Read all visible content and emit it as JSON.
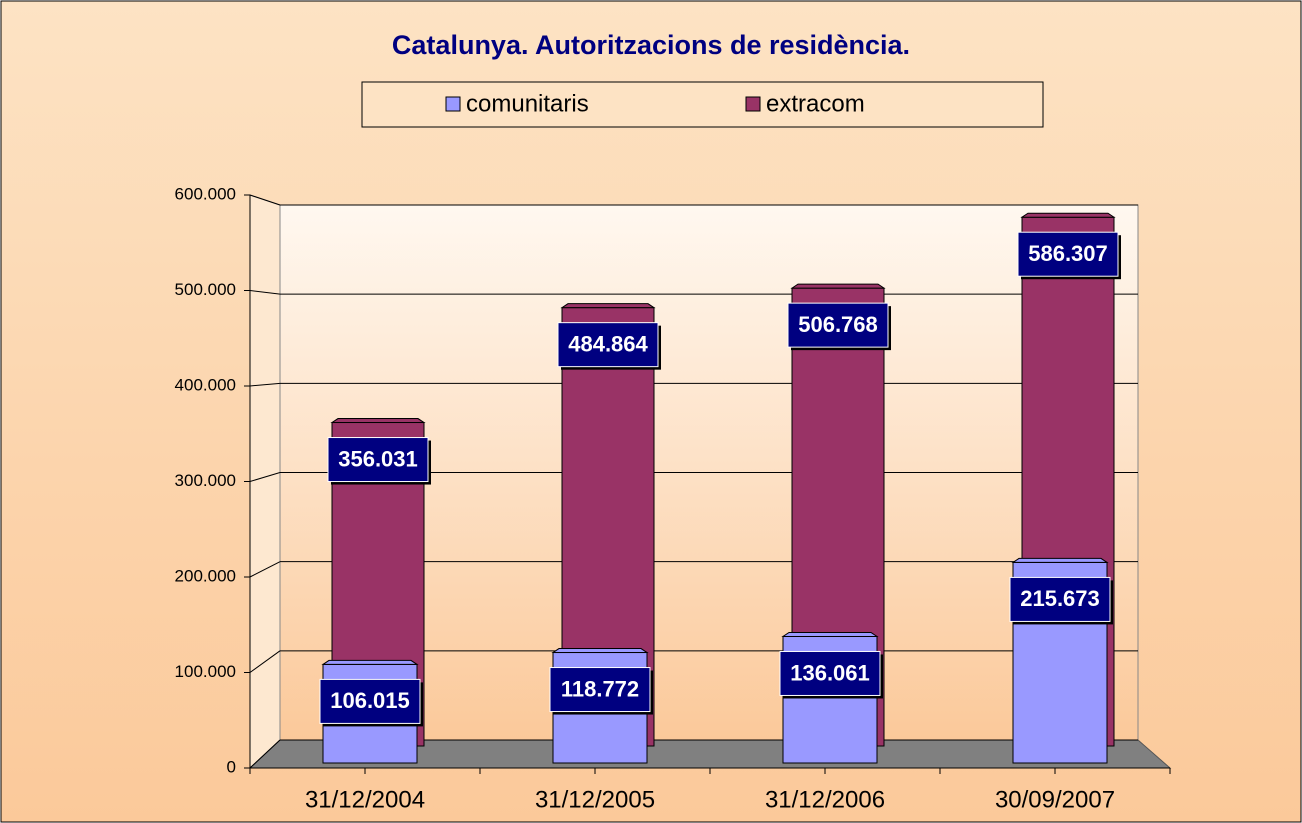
{
  "chart_data": {
    "type": "bar3d",
    "title": "Catalunya. Autoritzacions de residència.",
    "categories": [
      "31/12/2004",
      "31/12/2005",
      "31/12/2006",
      "30/09/2007"
    ],
    "series": [
      {
        "name": "comunitaris",
        "color": "#9999ff",
        "values": [
          106015,
          118772,
          136061,
          215673
        ],
        "value_labels": [
          "106.015",
          "118.772",
          "136.061",
          "215.673"
        ]
      },
      {
        "name": "extracom",
        "color": "#993366",
        "values": [
          356031,
          484864,
          506768,
          586307
        ],
        "value_labels": [
          "356.031",
          "484.864",
          "506.768",
          "586.307"
        ]
      }
    ],
    "ylim": [
      0,
      600000
    ],
    "yticks": [
      {
        "value": 0,
        "label": "0"
      },
      {
        "value": 100000,
        "label": "100.000"
      },
      {
        "value": 200000,
        "label": "200.000"
      },
      {
        "value": 300000,
        "label": "300.000"
      },
      {
        "value": 400000,
        "label": "400.000"
      },
      {
        "value": 500000,
        "label": "500.000"
      },
      {
        "value": 600000,
        "label": "600.000"
      }
    ],
    "grid": true,
    "legend": "top"
  }
}
